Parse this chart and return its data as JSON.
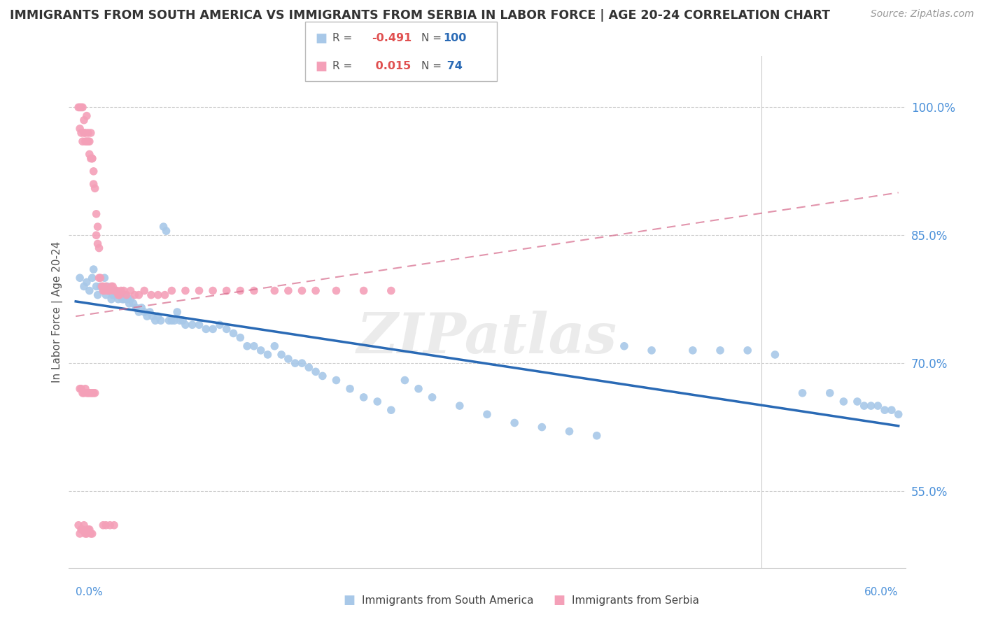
{
  "title": "IMMIGRANTS FROM SOUTH AMERICA VS IMMIGRANTS FROM SERBIA IN LABOR FORCE | AGE 20-24 CORRELATION CHART",
  "source": "Source: ZipAtlas.com",
  "ylabel": "In Labor Force | Age 20-24",
  "ytick_labels": [
    "55.0%",
    "70.0%",
    "85.0%",
    "100.0%"
  ],
  "ytick_values": [
    0.55,
    0.7,
    0.85,
    1.0
  ],
  "xlim": [
    -0.005,
    0.605
  ],
  "ylim": [
    0.46,
    1.06
  ],
  "blue_color": "#a8c8e8",
  "blue_line_color": "#2a6ab5",
  "pink_color": "#f4a0b8",
  "pink_line_color": "#d87090",
  "watermark": "ZIPatlas",
  "south_america_x": [
    0.003,
    0.006,
    0.008,
    0.01,
    0.012,
    0.013,
    0.015,
    0.016,
    0.018,
    0.02,
    0.021,
    0.022,
    0.023,
    0.024,
    0.025,
    0.026,
    0.027,
    0.028,
    0.029,
    0.03,
    0.031,
    0.032,
    0.033,
    0.034,
    0.035,
    0.036,
    0.037,
    0.038,
    0.039,
    0.04,
    0.042,
    0.044,
    0.046,
    0.048,
    0.05,
    0.052,
    0.054,
    0.056,
    0.058,
    0.06,
    0.062,
    0.064,
    0.066,
    0.068,
    0.07,
    0.072,
    0.074,
    0.076,
    0.078,
    0.08,
    0.085,
    0.09,
    0.095,
    0.1,
    0.105,
    0.11,
    0.115,
    0.12,
    0.125,
    0.13,
    0.135,
    0.14,
    0.145,
    0.15,
    0.155,
    0.16,
    0.165,
    0.17,
    0.175,
    0.18,
    0.19,
    0.2,
    0.21,
    0.22,
    0.23,
    0.24,
    0.25,
    0.26,
    0.28,
    0.3,
    0.32,
    0.34,
    0.36,
    0.38,
    0.4,
    0.42,
    0.45,
    0.47,
    0.49,
    0.51,
    0.53,
    0.55,
    0.56,
    0.57,
    0.575,
    0.58,
    0.585,
    0.59,
    0.595,
    0.6
  ],
  "south_america_y": [
    0.8,
    0.79,
    0.795,
    0.785,
    0.8,
    0.81,
    0.79,
    0.78,
    0.79,
    0.785,
    0.8,
    0.78,
    0.79,
    0.785,
    0.785,
    0.775,
    0.78,
    0.785,
    0.78,
    0.78,
    0.775,
    0.78,
    0.78,
    0.775,
    0.775,
    0.78,
    0.775,
    0.775,
    0.77,
    0.775,
    0.77,
    0.765,
    0.76,
    0.765,
    0.76,
    0.755,
    0.76,
    0.755,
    0.75,
    0.755,
    0.75,
    0.86,
    0.855,
    0.75,
    0.75,
    0.75,
    0.76,
    0.75,
    0.75,
    0.745,
    0.745,
    0.745,
    0.74,
    0.74,
    0.745,
    0.74,
    0.735,
    0.73,
    0.72,
    0.72,
    0.715,
    0.71,
    0.72,
    0.71,
    0.705,
    0.7,
    0.7,
    0.695,
    0.69,
    0.685,
    0.68,
    0.67,
    0.66,
    0.655,
    0.645,
    0.68,
    0.67,
    0.66,
    0.65,
    0.64,
    0.63,
    0.625,
    0.62,
    0.615,
    0.72,
    0.715,
    0.715,
    0.715,
    0.715,
    0.71,
    0.665,
    0.665,
    0.655,
    0.655,
    0.65,
    0.65,
    0.65,
    0.645,
    0.645,
    0.64
  ],
  "serbia_x": [
    0.002,
    0.003,
    0.003,
    0.004,
    0.004,
    0.005,
    0.005,
    0.006,
    0.006,
    0.007,
    0.007,
    0.008,
    0.008,
    0.009,
    0.009,
    0.01,
    0.01,
    0.011,
    0.011,
    0.012,
    0.012,
    0.013,
    0.013,
    0.014,
    0.015,
    0.015,
    0.016,
    0.016,
    0.017,
    0.017,
    0.018,
    0.019,
    0.02,
    0.02,
    0.021,
    0.022,
    0.023,
    0.024,
    0.025,
    0.026,
    0.027,
    0.028,
    0.029,
    0.03,
    0.031,
    0.032,
    0.033,
    0.035,
    0.037,
    0.04,
    0.043,
    0.046,
    0.05,
    0.055,
    0.06,
    0.065,
    0.07,
    0.08,
    0.09,
    0.1,
    0.11,
    0.12,
    0.13,
    0.145,
    0.155,
    0.165,
    0.175,
    0.19,
    0.21,
    0.23,
    0.02,
    0.022,
    0.025,
    0.028
  ],
  "serbia_y": [
    1.0,
    1.0,
    0.975,
    1.0,
    0.97,
    1.0,
    0.96,
    0.97,
    0.985,
    0.96,
    0.97,
    0.96,
    0.99,
    0.97,
    0.96,
    0.96,
    0.945,
    0.94,
    0.97,
    0.94,
    0.94,
    0.925,
    0.91,
    0.905,
    0.875,
    0.85,
    0.86,
    0.84,
    0.835,
    0.8,
    0.8,
    0.79,
    0.79,
    0.785,
    0.785,
    0.79,
    0.785,
    0.785,
    0.785,
    0.79,
    0.79,
    0.785,
    0.785,
    0.785,
    0.78,
    0.78,
    0.785,
    0.785,
    0.78,
    0.785,
    0.78,
    0.78,
    0.785,
    0.78,
    0.78,
    0.78,
    0.785,
    0.785,
    0.785,
    0.785,
    0.785,
    0.785,
    0.785,
    0.785,
    0.785,
    0.785,
    0.785,
    0.785,
    0.785,
    0.785,
    0.51,
    0.51,
    0.51,
    0.51
  ],
  "serbia_low_x": [
    0.002,
    0.003,
    0.004,
    0.005,
    0.006,
    0.007,
    0.008,
    0.009,
    0.01,
    0.011,
    0.012
  ],
  "serbia_low_y": [
    0.51,
    0.5,
    0.505,
    0.505,
    0.51,
    0.5,
    0.5,
    0.505,
    0.505,
    0.5,
    0.5
  ],
  "serbia_mid_x": [
    0.003,
    0.004,
    0.005,
    0.006,
    0.007,
    0.008,
    0.009,
    0.01,
    0.011,
    0.012,
    0.013,
    0.014
  ],
  "serbia_mid_y": [
    0.67,
    0.67,
    0.665,
    0.665,
    0.67,
    0.665,
    0.665,
    0.665,
    0.665,
    0.665,
    0.665,
    0.665
  ]
}
